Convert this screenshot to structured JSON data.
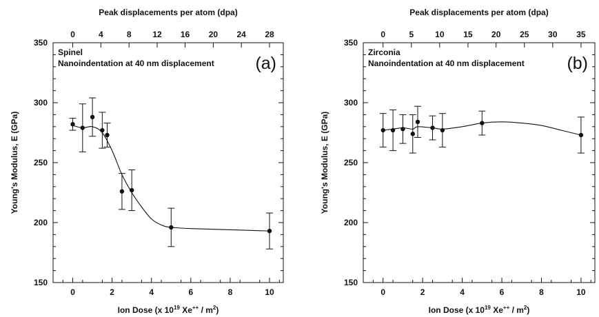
{
  "chart_data": [
    {
      "type": "scatter",
      "panel_label": "(a)",
      "annotations": [
        "Spinel",
        "Nanoindentation at 40 nm displacement"
      ],
      "xlabel": "Ion Dose (x 10",
      "xlabel_sup1": "19",
      "xlabel_mid": " Xe",
      "xlabel_sup2": "++",
      "xlabel_mid2": " / m",
      "xlabel_sup3": "2",
      "xlabel_end": ")",
      "ylabel": "Young's Modulus, E (GPa)",
      "x2label": "Peak displacements per atom (dpa)",
      "xlim": [
        -1,
        10.7
      ],
      "ylim": [
        150,
        350
      ],
      "xticks": [
        0,
        2,
        4,
        6,
        8,
        10
      ],
      "yticks": [
        150,
        200,
        250,
        300,
        350
      ],
      "top_ticks": [
        {
          "x": 0,
          "label": "0"
        },
        {
          "x": 1.43,
          "label": "4"
        },
        {
          "x": 2.86,
          "label": "8"
        },
        {
          "x": 4.29,
          "label": "12"
        },
        {
          "x": 5.71,
          "label": "16"
        },
        {
          "x": 7.14,
          "label": "20"
        },
        {
          "x": 8.57,
          "label": "24"
        },
        {
          "x": 10,
          "label": "28"
        }
      ],
      "series": [
        {
          "points": [
            {
              "x": 0,
              "y": 282,
              "err": 5
            },
            {
              "x": 0.5,
              "y": 279,
              "err": 20
            },
            {
              "x": 1,
              "y": 288,
              "err": 16
            },
            {
              "x": 1.5,
              "y": 277,
              "err": 15
            },
            {
              "x": 1.75,
              "y": 273,
              "err": 10
            },
            {
              "x": 2.5,
              "y": 226,
              "err": 15
            },
            {
              "x": 3,
              "y": 227,
              "err": 17
            },
            {
              "x": 5,
              "y": 196,
              "err": 16
            },
            {
              "x": 10,
              "y": 193,
              "err": 15
            }
          ],
          "fit": [
            [
              0,
              281
            ],
            [
              0.5,
              279
            ],
            [
              1,
              280
            ],
            [
              1.5,
              275
            ],
            [
              2,
              260
            ],
            [
              2.5,
              240
            ],
            [
              3,
              225
            ],
            [
              3.5,
              213
            ],
            [
              4,
              203
            ],
            [
              4.5,
              198
            ],
            [
              5,
              196
            ],
            [
              6,
              195
            ],
            [
              8,
              194
            ],
            [
              10,
              193
            ]
          ]
        }
      ]
    },
    {
      "type": "scatter",
      "panel_label": "(b)",
      "annotations": [
        "Zirconia",
        "Nanoindentation at 40 nm displacement"
      ],
      "xlabel": "Ion Dose (x 10",
      "xlabel_sup1": "19",
      "xlabel_mid": " Xe",
      "xlabel_sup2": "++",
      "xlabel_mid2": " / m",
      "xlabel_sup3": "2",
      "xlabel_end": ")",
      "ylabel": "Young's Modulus, E (GPa)",
      "x2label": "Peak displacements per atom (dpa)",
      "xlim": [
        -1,
        10.7
      ],
      "ylim": [
        150,
        350
      ],
      "xticks": [
        0,
        2,
        4,
        6,
        8,
        10
      ],
      "yticks": [
        150,
        200,
        250,
        300,
        350
      ],
      "top_ticks": [
        {
          "x": 0,
          "label": "0"
        },
        {
          "x": 1.43,
          "label": "5"
        },
        {
          "x": 2.86,
          "label": "10"
        },
        {
          "x": 4.29,
          "label": "15"
        },
        {
          "x": 5.71,
          "label": "20"
        },
        {
          "x": 7.14,
          "label": "25"
        },
        {
          "x": 8.57,
          "label": "30"
        },
        {
          "x": 10,
          "label": "35"
        }
      ],
      "series": [
        {
          "points": [
            {
              "x": 0,
              "y": 277,
              "err": 14
            },
            {
              "x": 0.5,
              "y": 277,
              "err": 17
            },
            {
              "x": 1,
              "y": 278,
              "err": 12
            },
            {
              "x": 1.5,
              "y": 274,
              "err": 16
            },
            {
              "x": 1.75,
              "y": 284,
              "err": 13
            },
            {
              "x": 2.5,
              "y": 279,
              "err": 10
            },
            {
              "x": 3,
              "y": 277,
              "err": 14
            },
            {
              "x": 5,
              "y": 283,
              "err": 10
            },
            {
              "x": 10,
              "y": 273,
              "err": 15
            }
          ],
          "fit": [
            [
              0,
              277
            ],
            [
              0.5,
              278
            ],
            [
              1,
              279
            ],
            [
              1.5,
              278
            ],
            [
              1.75,
              280
            ],
            [
              2.5,
              279
            ],
            [
              3,
              278
            ],
            [
              4,
              280
            ],
            [
              5,
              283
            ],
            [
              6,
              284
            ],
            [
              7,
              283
            ],
            [
              8,
              281
            ],
            [
              9,
              277
            ],
            [
              10,
              273
            ]
          ]
        }
      ]
    }
  ]
}
